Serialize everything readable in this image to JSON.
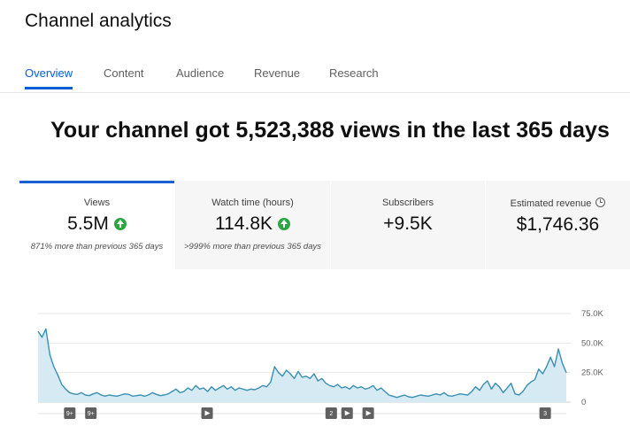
{
  "page": {
    "title": "Channel analytics"
  },
  "tabs": [
    {
      "label": "Overview",
      "active": true
    },
    {
      "label": "Content",
      "active": false
    },
    {
      "label": "Audience",
      "active": false
    },
    {
      "label": "Revenue",
      "active": false
    },
    {
      "label": "Research",
      "active": false
    }
  ],
  "headline": "Your channel got 5,523,388 views in the last 365 days",
  "cards": [
    {
      "label": "Views",
      "value": "5.5M",
      "trend": "up",
      "delta": "871% more than previous 365 days"
    },
    {
      "label": "Watch time (hours)",
      "value": "114.8K",
      "trend": "up",
      "delta": ">999% more than previous 365 days"
    },
    {
      "label": "Subscribers",
      "value": "+9.5K",
      "trend": "",
      "delta": ""
    },
    {
      "label": "Estimated revenue",
      "value": "$1,746.36",
      "trend": "",
      "delta": ""
    }
  ],
  "colors": {
    "accent": "#065fd4",
    "line": "#3a8fb0",
    "fill": "#d5eaf3",
    "up": "#2ba640",
    "marker": "#606060"
  },
  "icons": {
    "trend_up": "arrow-up-circle-icon",
    "info": "clock-icon",
    "video_marker": "play-icon"
  },
  "chart_data": {
    "type": "area",
    "series": [
      {
        "values": [
          60000,
          55000,
          62000,
          40000,
          30000,
          23000,
          15000,
          11000,
          8000,
          7000,
          6500,
          8000,
          6000,
          5500,
          7000,
          8000,
          6000,
          5000,
          6000,
          5500,
          5000,
          6000,
          7000,
          6500,
          5000,
          5500,
          6000,
          5000,
          6000,
          8000,
          6500,
          5500,
          6000,
          7000,
          9000,
          11000,
          8000,
          9000,
          12000,
          10000,
          14000,
          11000,
          12000,
          9000,
          13000,
          10000,
          12000,
          14000,
          11000,
          13000,
          10000,
          12000,
          11000,
          10000,
          11000,
          10500,
          12000,
          14000,
          13000,
          17000,
          30000,
          25000,
          22000,
          27000,
          24000,
          20000,
          26000,
          21000,
          22000,
          20000,
          24000,
          18000,
          20000,
          16000,
          14000,
          13000,
          15000,
          12000,
          13000,
          11000,
          14000,
          12000,
          13000,
          11000,
          12000,
          14000,
          10000,
          12000,
          9000,
          6000,
          5000,
          4000,
          5000,
          6000,
          4500,
          4000,
          5000,
          6000,
          5500,
          5000,
          6000,
          7000,
          6000,
          8000,
          5500,
          5000,
          6000,
          7000,
          6500,
          6000,
          9000,
          13000,
          10000,
          15000,
          18000,
          11000,
          16000,
          13000,
          8000,
          12000,
          16000,
          7000,
          6000,
          9000,
          14000,
          17000,
          19000,
          28000,
          24000,
          30000,
          38000,
          30000,
          45000,
          33000,
          25000
        ]
      }
    ],
    "ylim": [
      0,
      75000
    ],
    "y_ticks": [
      "75.0K",
      "50.0K",
      "25.0K",
      "0"
    ],
    "markers": [
      {
        "label": "9+",
        "kind": "badge",
        "pos": 0.06
      },
      {
        "label": "9+",
        "kind": "badge",
        "pos": 0.1
      },
      {
        "label": "",
        "kind": "play",
        "pos": 0.32
      },
      {
        "label": "2",
        "kind": "badge",
        "pos": 0.555
      },
      {
        "label": "",
        "kind": "play",
        "pos": 0.585
      },
      {
        "label": "",
        "kind": "play",
        "pos": 0.625
      },
      {
        "label": "3",
        "kind": "badge",
        "pos": 0.96
      }
    ]
  }
}
